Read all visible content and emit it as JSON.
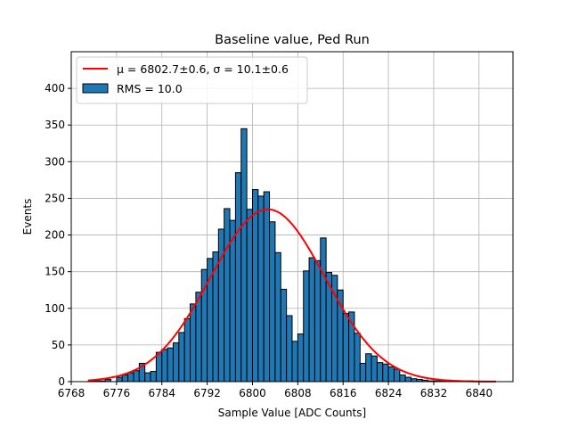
{
  "chart_data": {
    "type": "bar",
    "title": "Baseline value, Ped Run",
    "xlabel": "Sample Value [ADC Counts]",
    "ylabel": "Events",
    "xlim": [
      6768,
      6846
    ],
    "ylim": [
      0,
      450
    ],
    "xticks": [
      6768,
      6776,
      6784,
      6792,
      6800,
      6808,
      6816,
      6824,
      6832,
      6840
    ],
    "yticks": [
      0,
      50,
      100,
      150,
      200,
      250,
      300,
      350,
      400
    ],
    "grid": true,
    "legend_position": "top-left",
    "legend": [
      {
        "label": "μ = 6802.7±0.6, σ = 10.1±0.6",
        "kind": "line",
        "color": "#ff0000"
      },
      {
        "label": "RMS = 10.0",
        "kind": "patch",
        "color": "#1f77b4"
      }
    ],
    "histogram": {
      "bin_start": 6771,
      "bin_width": 1,
      "counts": [
        1,
        1,
        1,
        3,
        0,
        6,
        9,
        12,
        15,
        25,
        12,
        14,
        40,
        44,
        46,
        53,
        67,
        86,
        106,
        122,
        153,
        168,
        177,
        208,
        236,
        220,
        285,
        345,
        235,
        262,
        253,
        259,
        218,
        176,
        126,
        90,
        55,
        65,
        151,
        169,
        165,
        196,
        149,
        145,
        125,
        93,
        95,
        66,
        25,
        38,
        35,
        26,
        24,
        20,
        17,
        9,
        6,
        4,
        3,
        2,
        1,
        1,
        1,
        0,
        1,
        1,
        0,
        1,
        0,
        0,
        0,
        0,
        0
      ]
    },
    "fit": {
      "label": "μ = 6802.7±0.6, σ = 10.1±0.6",
      "mu": 6802.7,
      "sigma": 10.1,
      "amplitude": 235,
      "x_range": [
        6771,
        6843
      ]
    }
  }
}
